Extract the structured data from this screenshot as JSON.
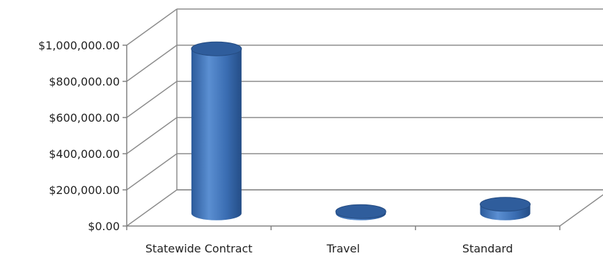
{
  "chart_data": {
    "type": "bar",
    "style": "3d-cylinder",
    "title": "",
    "xlabel": "",
    "ylabel": "",
    "categories": [
      "Statewide Contract",
      "Travel",
      "Standard"
    ],
    "series": [
      {
        "values": [
          910000,
          10000,
          50000
        ]
      }
    ],
    "ylim": [
      0,
      1000000
    ],
    "y_ticks": [
      0,
      200000,
      400000,
      600000,
      800000,
      1000000
    ],
    "y_tick_labels": [
      "$0.00",
      "$200,000.00",
      "$400,000.00",
      "$600,000.00",
      "$800,000.00",
      "$1,000,000.00"
    ],
    "grid": true,
    "legend": "none",
    "colors": {
      "bar_side": "#3b6fb7",
      "bar_top": "#2f5d9c",
      "gridline": "#8c8c8c",
      "axis": "#808080"
    }
  }
}
